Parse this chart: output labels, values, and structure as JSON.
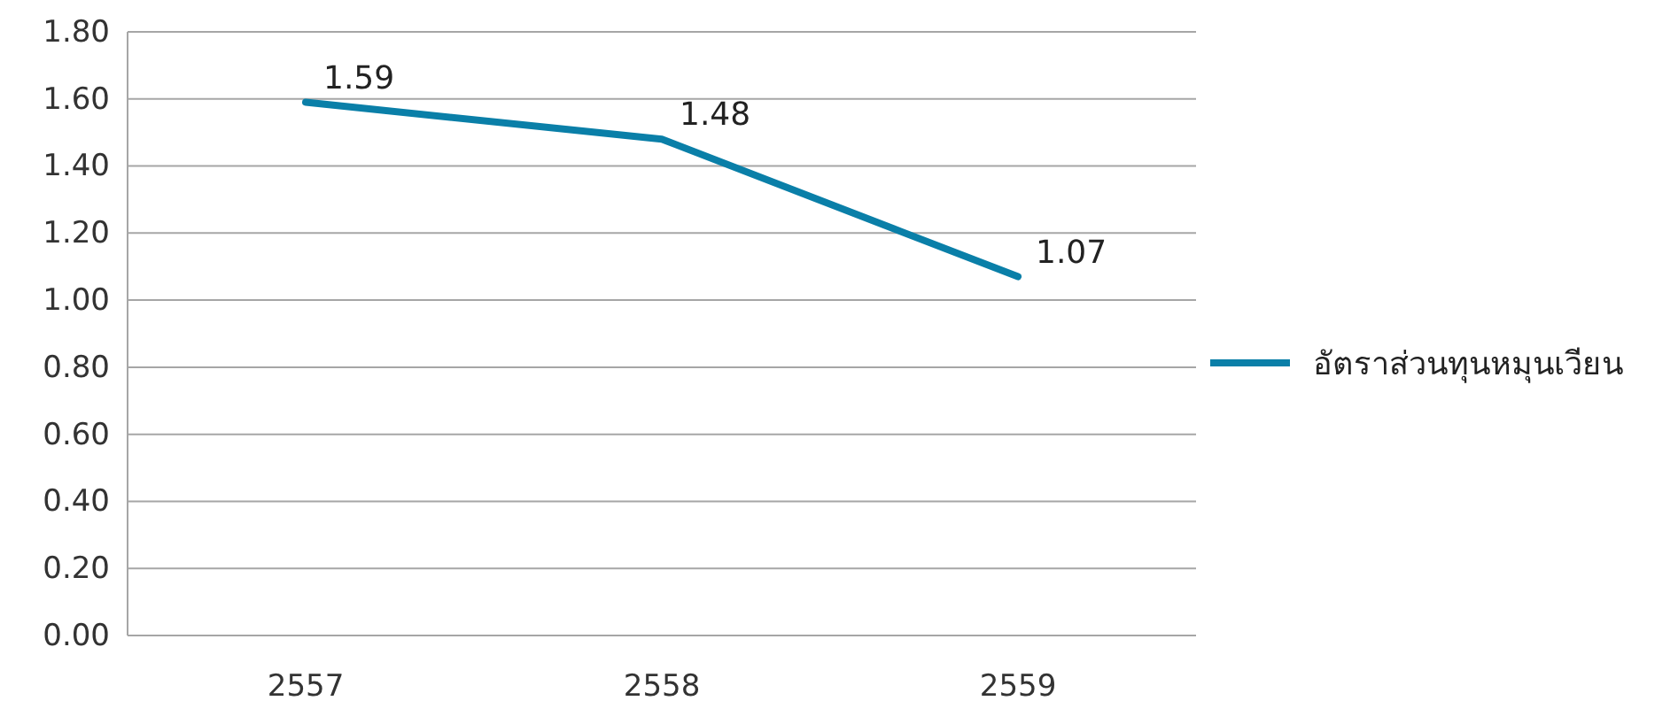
{
  "chart_data": {
    "type": "line",
    "categories": [
      "2557",
      "2558",
      "2559"
    ],
    "series": [
      {
        "name": "อัตราส่วนทุนหมุนเวียน",
        "color": "#0a7fa8",
        "values": [
          1.59,
          1.48,
          1.07
        ]
      }
    ],
    "ylim": [
      0,
      1.8
    ],
    "yticks": [
      {
        "value": 0,
        "label": "0.00"
      },
      {
        "value": 0.2,
        "label": "0.20"
      },
      {
        "value": 0.4,
        "label": "0.40"
      },
      {
        "value": 0.6,
        "label": "0.60"
      },
      {
        "value": 0.8,
        "label": "0.80"
      },
      {
        "value": 1,
        "label": "1.00"
      },
      {
        "value": 1.2,
        "label": "1.20"
      },
      {
        "value": 1.4,
        "label": "1.40"
      },
      {
        "value": 1.6,
        "label": "1.60"
      },
      {
        "value": 1.8,
        "label": "1.80"
      }
    ],
    "grid": "y",
    "legend": "right",
    "data_labels": true,
    "marker": "none",
    "line_style": "solid"
  }
}
